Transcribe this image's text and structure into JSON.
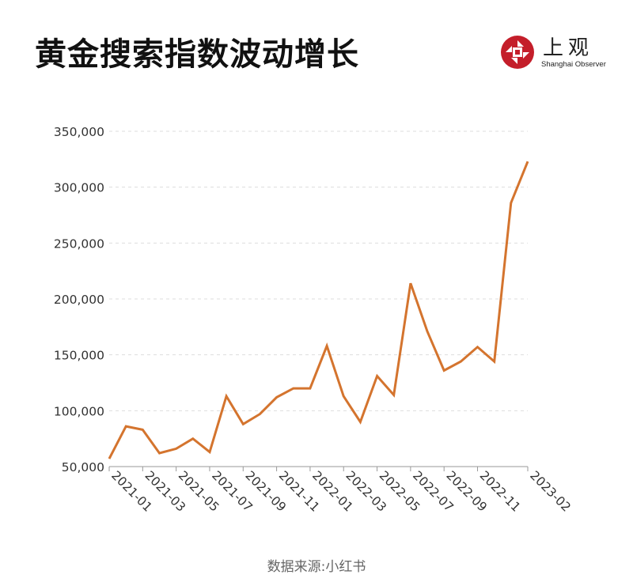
{
  "header": {
    "title": "黄金搜索指数波动增长",
    "brand_name": "上观",
    "brand_sub": "Shanghai Observer"
  },
  "source": "数据来源:小红书",
  "colors": {
    "line": "#d4742e",
    "axis": "#999999",
    "grid": "#dddddd",
    "text": "#333333",
    "brand": "#c41e2a"
  },
  "chart_data": {
    "type": "line",
    "title": "黄金搜索指数波动增长",
    "xlabel": "",
    "ylabel": "",
    "ylim": [
      50000,
      350000
    ],
    "yticks": [
      50000,
      100000,
      150000,
      200000,
      250000,
      300000,
      350000
    ],
    "ytick_labels": [
      "50,000",
      "100,000",
      "150,000",
      "200,000",
      "250,000",
      "300,000",
      "350,000"
    ],
    "x_tick_labels": [
      "2021-01",
      "2021-03",
      "2021-05",
      "2021-07",
      "2021-09",
      "2021-11",
      "2022-01",
      "2022-03",
      "2022-05",
      "2022-07",
      "2022-09",
      "2022-11",
      "2023-02"
    ],
    "x_tick_month_index": [
      0,
      2,
      4,
      6,
      8,
      10,
      12,
      14,
      16,
      18,
      20,
      22,
      25
    ],
    "grid": true,
    "series": [
      {
        "points": [
          {
            "x": 0,
            "y": 57000
          },
          {
            "x": 1,
            "y": 86000
          },
          {
            "x": 2,
            "y": 83000
          },
          {
            "x": 3,
            "y": 62000
          },
          {
            "x": 4,
            "y": 66000
          },
          {
            "x": 5,
            "y": 75000
          },
          {
            "x": 6,
            "y": 63000
          },
          {
            "x": 7,
            "y": 113000
          },
          {
            "x": 8,
            "y": 88000
          },
          {
            "x": 9,
            "y": 97000
          },
          {
            "x": 10,
            "y": 112000
          },
          {
            "x": 11,
            "y": 120000
          },
          {
            "x": 12,
            "y": 120000
          },
          {
            "x": 13,
            "y": 158000
          },
          {
            "x": 14,
            "y": 113000
          },
          {
            "x": 15,
            "y": 90000
          },
          {
            "x": 16,
            "y": 131000
          },
          {
            "x": 17,
            "y": 114000
          },
          {
            "x": 18,
            "y": 214000
          },
          {
            "x": 19,
            "y": 171000
          },
          {
            "x": 20,
            "y": 136000
          },
          {
            "x": 21,
            "y": 144000
          },
          {
            "x": 22,
            "y": 157000
          },
          {
            "x": 23,
            "y": 144000
          },
          {
            "x": 24,
            "y": 286000
          },
          {
            "x": 25,
            "y": 323000
          }
        ]
      }
    ]
  }
}
